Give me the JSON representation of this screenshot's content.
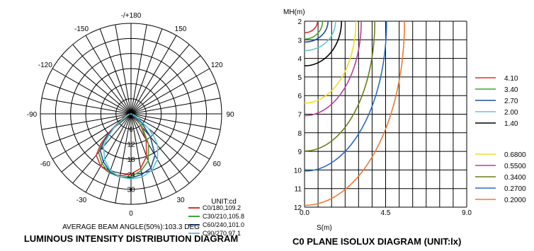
{
  "chart_data": [
    {
      "type": "polar",
      "title": "LUMINOUS INTENSITY DISTRIBUTION DIAGRAM",
      "angle_labels": [
        "-/+180",
        "150",
        "120",
        "90",
        "60",
        "30",
        "0",
        "-30",
        "-60",
        "-90",
        "-120",
        "-150"
      ],
      "angle_values": [
        180,
        150,
        120,
        90,
        60,
        30,
        0,
        -30,
        -60,
        -90,
        -120,
        -150
      ],
      "radial_labels": [
        "0",
        "6",
        "12",
        "18",
        "24",
        "30"
      ],
      "radial_values": [
        0,
        6,
        12,
        18,
        24,
        30
      ],
      "rmax": 36,
      "unit": "UNIT:cd",
      "series": [
        {
          "name": "C0/180,109.2",
          "color": "#e03030",
          "points": [
            [
              0,
              24
            ],
            [
              -10,
              25
            ],
            [
              -20,
              25
            ],
            [
              -30,
              24
            ],
            [
              -40,
              21.5
            ],
            [
              -45,
              17
            ],
            [
              -50,
              11
            ],
            [
              -55,
              6
            ],
            [
              -65,
              3
            ],
            [
              -80,
              1
            ],
            [
              -90,
              0
            ],
            [
              10,
              22
            ],
            [
              20,
              18
            ],
            [
              30,
              12
            ],
            [
              40,
              6
            ],
            [
              50,
              2
            ],
            [
              60,
              0
            ]
          ]
        },
        {
          "name": "C30/210,105.8",
          "color": "#3fa535",
          "points": [
            [
              0,
              25
            ],
            [
              -10,
              25.5
            ],
            [
              -20,
              25
            ],
            [
              -30,
              23
            ],
            [
              -40,
              20
            ],
            [
              -45,
              15.5
            ],
            [
              -50,
              10
            ],
            [
              -55,
              5.5
            ],
            [
              -65,
              2.5
            ],
            [
              -80,
              0.8
            ],
            [
              -90,
              0
            ],
            [
              10,
              23
            ],
            [
              20,
              20
            ],
            [
              30,
              14
            ],
            [
              40,
              7
            ],
            [
              50,
              2.5
            ],
            [
              60,
              0
            ]
          ]
        },
        {
          "name": "C60/240,101.0",
          "color": "#1f4fa0",
          "points": [
            [
              0,
              25.5
            ],
            [
              -10,
              25.5
            ],
            [
              -20,
              24.5
            ],
            [
              -30,
              22
            ],
            [
              -40,
              19
            ],
            [
              -45,
              15
            ],
            [
              -50,
              10
            ],
            [
              -55,
              5
            ],
            [
              -65,
              2
            ],
            [
              -80,
              0.5
            ],
            [
              -90,
              0
            ],
            [
              10,
              24.5
            ],
            [
              20,
              23
            ],
            [
              30,
              19
            ],
            [
              40,
              12
            ],
            [
              50,
              5.5
            ],
            [
              60,
              1
            ],
            [
              70,
              0
            ]
          ]
        },
        {
          "name": "C90/270,97.1",
          "color": "#5fc7d6",
          "points": [
            [
              0,
              26
            ],
            [
              -10,
              25.5
            ],
            [
              -20,
              24
            ],
            [
              -30,
              21
            ],
            [
              -40,
              17
            ],
            [
              -45,
              13
            ],
            [
              -50,
              9
            ],
            [
              -55,
              4.5
            ],
            [
              -65,
              1.8
            ],
            [
              -80,
              0.4
            ],
            [
              -90,
              0
            ],
            [
              10,
              25.5
            ],
            [
              20,
              24
            ],
            [
              30,
              21
            ],
            [
              40,
              16.5
            ],
            [
              45,
              13
            ],
            [
              50,
              9
            ],
            [
              55,
              4.5
            ],
            [
              65,
              1.8
            ],
            [
              80,
              0.4
            ],
            [
              90,
              0
            ]
          ]
        }
      ],
      "footer": "AVERAGE BEAM ANGLE(50%):103.3 DEG"
    },
    {
      "type": "isolux",
      "title": "C0 PLANE ISOLUX DIAGRAM (UNIT:lx)",
      "ylabel": "MH(m)",
      "xlabel": "S(m)",
      "y_ticks": [
        "2",
        "3",
        "4",
        "5",
        "6",
        "7",
        "8",
        "9",
        "10",
        "11",
        "12"
      ],
      "y_min": 2,
      "y_max": 12,
      "x_min": 0,
      "x_max": 9,
      "x_tick_values": [
        0,
        4.5,
        9
      ],
      "x_tick_labels": [
        "0.0",
        "4.5",
        "9.0"
      ],
      "x_grid_step": 0.75,
      "legend_group1": [
        {
          "label": "4.10",
          "color": "#e03030",
          "w": 0.72
        },
        {
          "label": "3.40",
          "color": "#3fa535",
          "w": 1.0
        },
        {
          "label": "2.70",
          "color": "#1f4fa0",
          "w": 1.3
        },
        {
          "label": "2.00",
          "color": "#5fc7d6",
          "w": 1.72
        },
        {
          "label": "1.40",
          "color": "#000000",
          "w": 2.05
        }
      ],
      "legend_group2": [
        {
          "label": "0.6800",
          "color": "#f0e020",
          "w": 2.85
        },
        {
          "label": "0.5500",
          "color": "#b83fa0",
          "w": 3.15
        },
        {
          "label": "0.3400",
          "color": "#6b7d1a",
          "w": 3.9
        },
        {
          "label": "0.2700",
          "color": "#2a6cc0",
          "w": 4.55
        },
        {
          "label": "0.2000",
          "color": "#f07830",
          "w": 5.55
        }
      ],
      "curve_bottoms_group1": [
        2.62,
        2.96,
        3.12,
        3.58,
        4.4
      ],
      "curve_bottoms_group2": [
        6.4,
        7.08,
        8.98,
        10.06,
        11.9
      ]
    }
  ]
}
